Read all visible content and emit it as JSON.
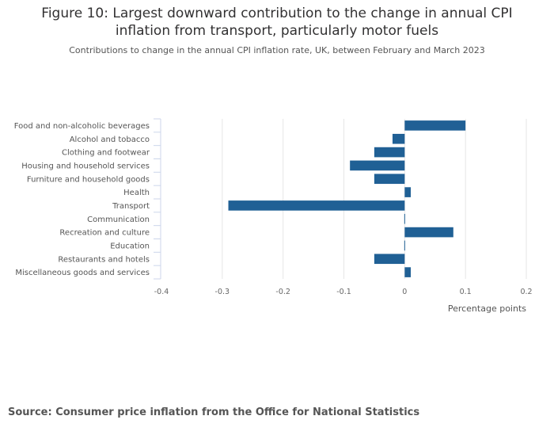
{
  "header": {
    "title_line1": "Figure 10: Largest downward contribution to the change in annual CPI",
    "title_line2": "inflation from transport, particularly motor fuels",
    "subtitle": "Contributions to change in the annual CPI inflation rate, UK, between February and March 2023"
  },
  "footer": {
    "source": "Source: Consumer price inflation from the Office for National Statistics"
  },
  "chart_data": {
    "type": "bar",
    "orientation": "horizontal",
    "title": "Figure 10: Largest downward contribution to the change in annual CPI inflation from transport, particularly motor fuels",
    "subtitle": "Contributions to change in the annual CPI inflation rate, UK, between February and March 2023",
    "xlabel": "Percentage points",
    "ylabel": "",
    "xlim": [
      -0.4,
      0.2
    ],
    "xticks": [
      -0.4,
      -0.3,
      -0.2,
      -0.1,
      0,
      0.1,
      0.2
    ],
    "xtick_labels": [
      "-0.4",
      "-0.3",
      "-0.2",
      "-0.1",
      "0",
      "0.1",
      "0.2"
    ],
    "grid": true,
    "legend": "none",
    "bar_color": "#206095",
    "categories": [
      "Food and non-alcoholic beverages",
      "Alcohol and tobacco",
      "Clothing and footwear",
      "Housing and household services",
      "Furniture and household goods",
      "Health",
      "Transport",
      "Communication",
      "Recreation and culture",
      "Education",
      "Restaurants and hotels",
      "Miscellaneous goods and services"
    ],
    "values": [
      0.1,
      -0.02,
      -0.05,
      -0.09,
      -0.05,
      0.01,
      -0.29,
      0.0,
      0.08,
      0.0,
      -0.05,
      0.01
    ]
  }
}
